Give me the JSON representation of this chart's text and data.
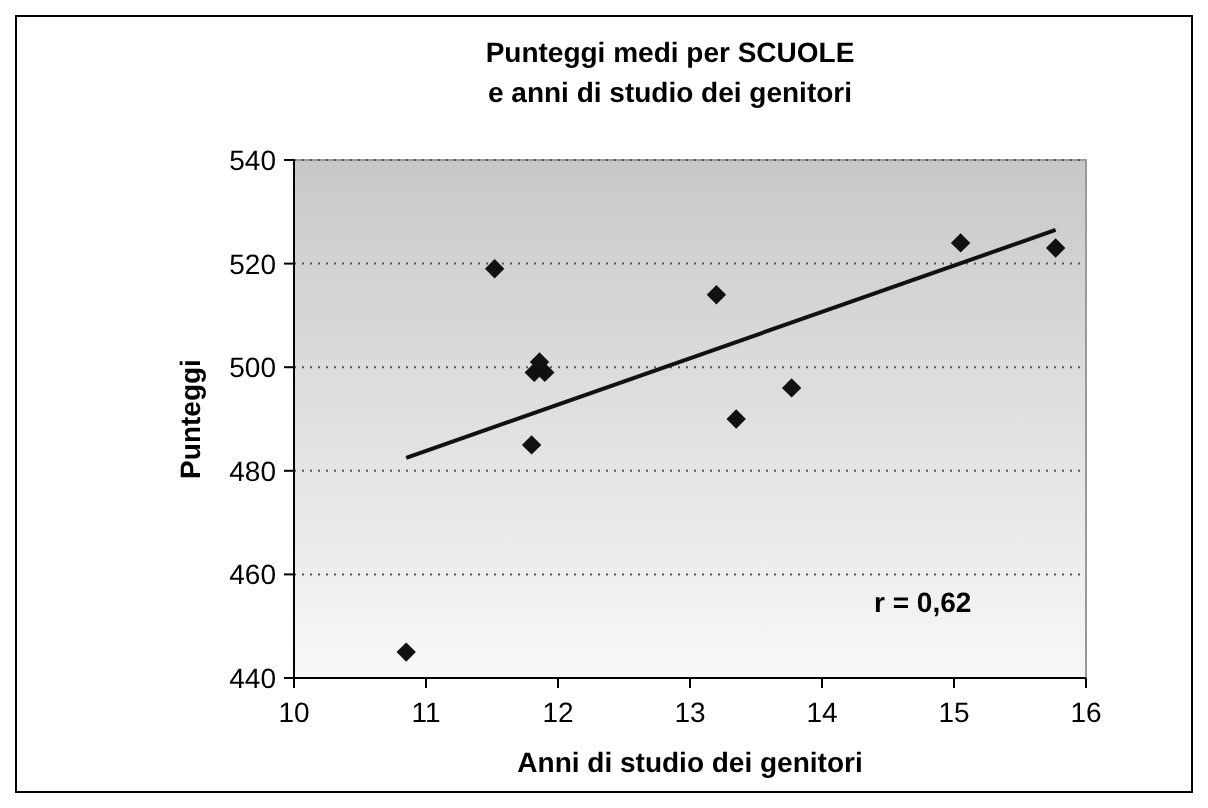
{
  "chart_data": {
    "type": "scatter",
    "title": "Punteggi medi per SCUOLE\ne anni di studio dei genitori",
    "xlabel": "Anni di studio dei genitori",
    "ylabel": "Punteggi",
    "xlim": [
      10,
      16
    ],
    "xticks": [
      10,
      11,
      12,
      13,
      14,
      15,
      16
    ],
    "ylim": [
      440,
      540
    ],
    "yticks": [
      440,
      460,
      480,
      500,
      520,
      540
    ],
    "grid": "y",
    "marker": "diamond",
    "series": [
      {
        "color": "#111111",
        "x": [
          10.85,
          11.52,
          11.8,
          11.82,
          11.86,
          11.9,
          13.2,
          13.35,
          13.77,
          15.05,
          15.77
        ],
        "values": [
          445,
          519,
          485,
          499,
          501,
          499,
          514,
          490,
          496,
          524,
          523
        ]
      },
      {
        "type": "line",
        "color": "#111111",
        "marker": "none",
        "line_style": "solid",
        "x": [
          10.85,
          15.77
        ],
        "values": [
          482.5,
          526.5
        ]
      }
    ],
    "annotations": [
      "r = 0,62"
    ]
  }
}
